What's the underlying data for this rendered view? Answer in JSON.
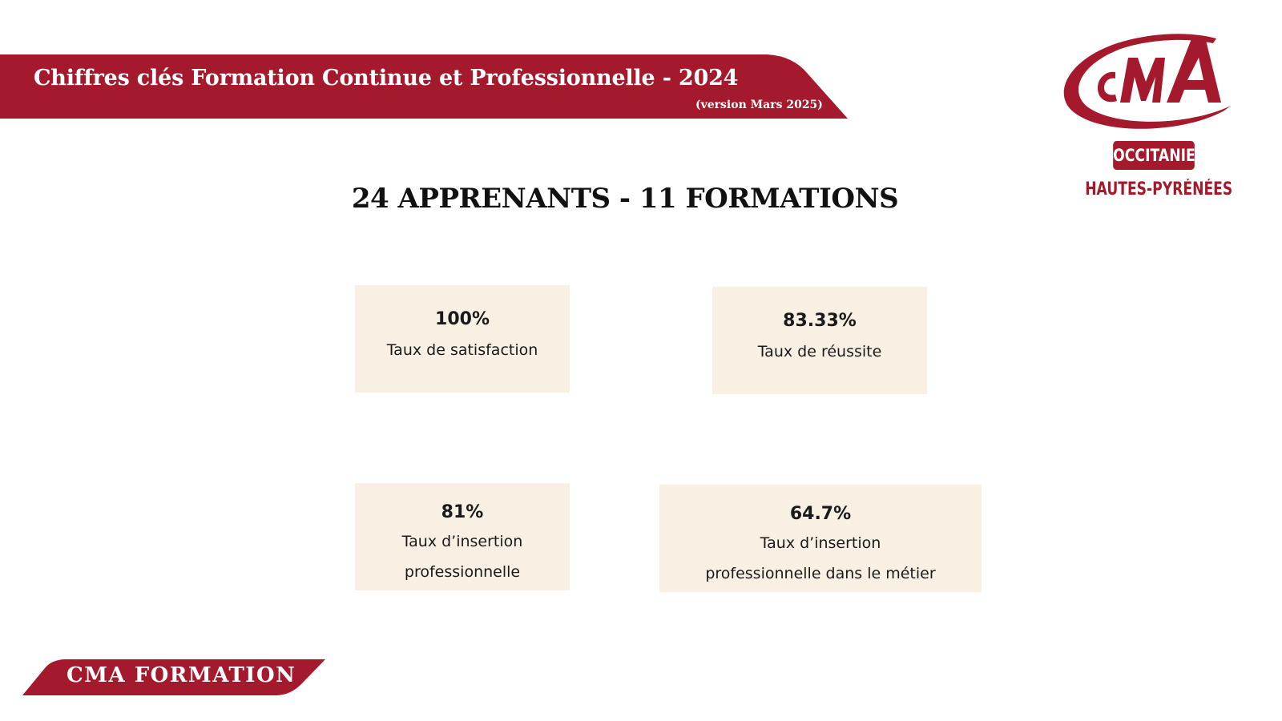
{
  "header": {
    "title": "Chiffres clés Formation Continue et Professionnelle - 2024",
    "version": "(version Mars 2025)"
  },
  "logo": {
    "mark_letters": "CMA",
    "region": "OCCITANIE",
    "department": "HAUTES-PYRÉNÉES"
  },
  "main": {
    "title": "24 APPRENANTS - 11 FORMATIONS"
  },
  "stats": [
    {
      "value": "100%",
      "label_lines": [
        "Taux de satisfaction"
      ]
    },
    {
      "value": "83.33%",
      "label_lines": [
        "Taux de réussite"
      ]
    },
    {
      "value": "81%",
      "label_lines": [
        "Taux d’insertion",
        "professionnelle"
      ]
    },
    {
      "value": "64.7%",
      "label_lines": [
        "Taux d’insertion",
        "professionnelle dans le métier"
      ]
    }
  ],
  "footer": {
    "label": "CMA FORMATION"
  },
  "colors": {
    "brand_red": "#a5192c",
    "card_background": "#f8f0e3",
    "text_dark": "#111111"
  }
}
